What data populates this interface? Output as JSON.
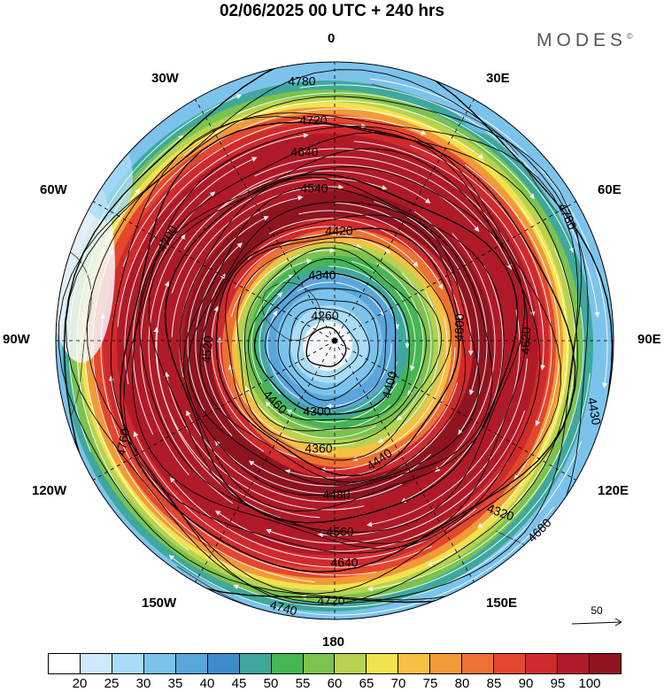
{
  "title": "02/06/2025  00 UTC  + 240 hrs",
  "brand": "MODES",
  "brand_mark": "©",
  "longitude_labels": [
    "0",
    "30E",
    "60E",
    "90E",
    "120E",
    "150E",
    "180",
    "150W",
    "120W",
    "90W",
    "60W",
    "30W"
  ],
  "height_contours": [
    "4780",
    "4720",
    "4640",
    "4540",
    "4420",
    "4340",
    "4260",
    "4400",
    "4300",
    "4360",
    "4440",
    "4480",
    "4560",
    "4640",
    "4720",
    "4740",
    "4780",
    "4760",
    "4700",
    "4620",
    "4600",
    "4520",
    "4460",
    "4430",
    "4320",
    "4680"
  ],
  "reference_vector": {
    "label": "50"
  },
  "colorbar": {
    "ticks": [
      "20",
      "25",
      "30",
      "35",
      "40",
      "45",
      "50",
      "55",
      "60",
      "65",
      "70",
      "75",
      "80",
      "85",
      "90",
      "95",
      "100"
    ],
    "colors": [
      "#ffffff",
      "#cfeafb",
      "#a9dcf7",
      "#7cc3ec",
      "#5aa6dc",
      "#3f8cca",
      "#3fa89c",
      "#45b653",
      "#7cc24f",
      "#b7d34f",
      "#f2e34e",
      "#f7c043",
      "#f29a38",
      "#ee7132",
      "#e3472e",
      "#cf2a2e",
      "#b01a28",
      "#8e1420"
    ]
  },
  "colors": {
    "core": "#f4f7fa",
    "coastline": "#333333",
    "contour": "#000000",
    "streamline": "#ffffff"
  }
}
